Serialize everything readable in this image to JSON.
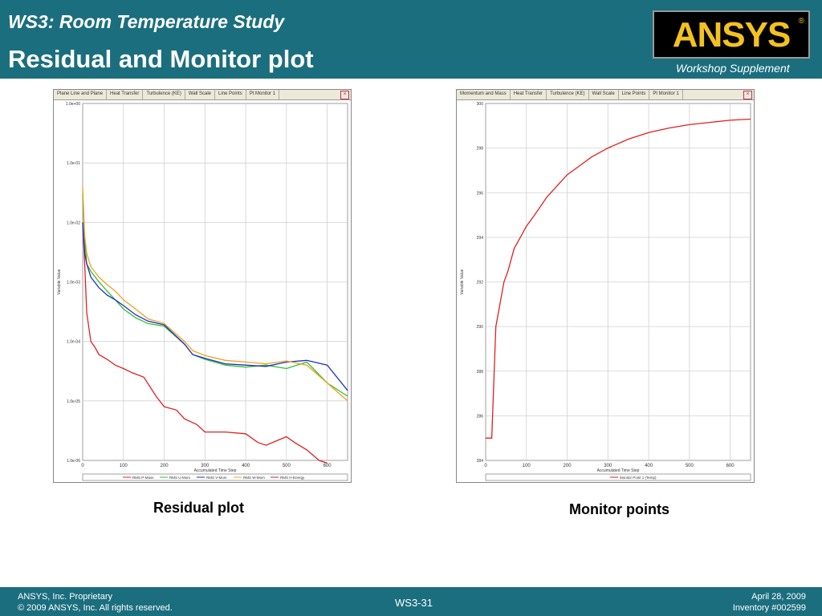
{
  "header": {
    "subtitle": "WS3: Room Temperature Study",
    "title": "Residual and Monitor plot",
    "logo_text": "ANSYS",
    "logo_reg": "®",
    "supplement": "Workshop Supplement",
    "background_color": "#1b6e7e",
    "logo_color": "#f4c21f"
  },
  "residual_panel": {
    "tabs": [
      "Plane Line and Plane",
      "Heat Transfer",
      "Turbulence (KE)",
      "Wall Scale",
      "Line Points",
      "Pt Monitor 1"
    ],
    "close_icon": "close-icon",
    "caption": "Residual plot"
  },
  "monitor_panel": {
    "tabs": [
      "Momentum and Mass",
      "Heat Transfer",
      "Turbulence (KE)",
      "Wall Scale",
      "Line Points",
      "Pt Monitor 1"
    ],
    "close_icon": "close-icon",
    "caption": "Monitor points"
  },
  "chart_data": [
    {
      "type": "line",
      "title": "",
      "xlabel": "Accumulated Time Step",
      "ylabel": "Variable Value",
      "xlim": [
        0,
        650
      ],
      "x_ticks": [
        "0",
        "100",
        "200",
        "300",
        "400",
        "500",
        "600"
      ],
      "y_ticks": [
        "1.0e+00",
        "1.0e-01",
        "1.0e-02",
        "1.0e-03",
        "1.0e-04",
        "1.0e-05",
        "1.0e-06"
      ],
      "log_y": true,
      "ylim": [
        1e-06,
        1.0
      ],
      "grid": true,
      "legend_position": "bottom",
      "series": [
        {
          "name": "RMS P-Mass",
          "color": "#e02020",
          "x": [
            0,
            5,
            10,
            20,
            30,
            40,
            60,
            80,
            100,
            120,
            150,
            180,
            200,
            230,
            250,
            280,
            300,
            350,
            400,
            430,
            450,
            480,
            500,
            520,
            550,
            580,
            600
          ],
          "y": [
            0.01,
            0.002,
            0.0003,
            0.0001,
            8e-05,
            6e-05,
            5e-05,
            4e-05,
            3.5e-05,
            3e-05,
            2.5e-05,
            1.2e-05,
            8e-06,
            7e-06,
            5e-06,
            4e-06,
            3e-06,
            3e-06,
            2.8e-06,
            2e-06,
            1.8e-06,
            2.2e-06,
            2.5e-06,
            2e-06,
            1.5e-06,
            1e-06,
            9e-07
          ]
        },
        {
          "name": "RMS U-Mom",
          "color": "#30c030",
          "x": [
            0,
            5,
            10,
            20,
            40,
            60,
            80,
            100,
            130,
            160,
            200,
            250,
            270,
            300,
            350,
            400,
            450,
            500,
            550,
            600,
            650
          ],
          "y": [
            0.03,
            0.005,
            0.002,
            0.0015,
            0.001,
            0.0007,
            0.0005,
            0.00035,
            0.00025,
            0.0002,
            0.00018,
            9e-05,
            6e-05,
            5e-05,
            4e-05,
            3.7e-05,
            4e-05,
            3.5e-05,
            4.5e-05,
            2e-05,
            1.2e-05
          ]
        },
        {
          "name": "RMS V-Mom",
          "color": "#2030c0",
          "x": [
            0,
            5,
            10,
            20,
            40,
            60,
            80,
            100,
            130,
            160,
            200,
            250,
            270,
            300,
            350,
            400,
            450,
            500,
            550,
            600,
            650
          ],
          "y": [
            0.01,
            0.003,
            0.002,
            0.0012,
            0.0008,
            0.0006,
            0.0005,
            0.0004,
            0.00028,
            0.00022,
            0.00019,
            9e-05,
            6e-05,
            5.2e-05,
            4.2e-05,
            4e-05,
            3.8e-05,
            4.5e-05,
            4.8e-05,
            4e-05,
            1.5e-05
          ]
        },
        {
          "name": "RMS W-Mom",
          "color": "#f0a020",
          "x": [
            0,
            5,
            10,
            20,
            40,
            60,
            80,
            100,
            130,
            160,
            200,
            250,
            270,
            300,
            350,
            400,
            450,
            500,
            550,
            600,
            650
          ],
          "y": [
            0.04,
            0.006,
            0.003,
            0.0018,
            0.0012,
            0.0009,
            0.0007,
            0.0005,
            0.00035,
            0.00024,
            0.0002,
            0.0001,
            7e-05,
            5.8e-05,
            4.8e-05,
            4.5e-05,
            4.2e-05,
            4.7e-05,
            4e-05,
            2e-05,
            1e-05
          ]
        },
        {
          "name": "RMS H-Energy",
          "color": "#c02060",
          "x": [],
          "y": []
        }
      ]
    },
    {
      "type": "line",
      "title": "",
      "xlabel": "Accumulated Time Step",
      "ylabel": "Variable Value",
      "xlim": [
        0,
        650
      ],
      "ylim": [
        284.0,
        300.0
      ],
      "x_ticks": [
        "0",
        "100",
        "200",
        "300",
        "400",
        "500",
        "600"
      ],
      "y_ticks": [
        "300",
        "298",
        "296",
        "294",
        "292",
        "290",
        "288",
        "286",
        "284"
      ],
      "grid": true,
      "legend_position": "bottom",
      "series": [
        {
          "name": "Monitor Point 1 (Temp)",
          "color": "#e02020",
          "x": [
            0,
            15,
            25,
            35,
            45,
            55,
            70,
            85,
            100,
            120,
            150,
            180,
            200,
            230,
            260,
            300,
            350,
            400,
            450,
            500,
            550,
            600,
            650
          ],
          "y": [
            285,
            285,
            290,
            291,
            292,
            292.5,
            293.5,
            294,
            294.5,
            295,
            295.8,
            296.4,
            296.8,
            297.2,
            297.6,
            298.0,
            298.4,
            298.7,
            298.9,
            299.05,
            299.15,
            299.25,
            299.3
          ]
        }
      ]
    }
  ],
  "footer": {
    "left_line1": "ANSYS, Inc. Proprietary",
    "left_line2": "© 2009 ANSYS, Inc.  All rights reserved.",
    "center": "WS3-31",
    "right_line1": "April 28, 2009",
    "right_line2": "Inventory #002599"
  }
}
